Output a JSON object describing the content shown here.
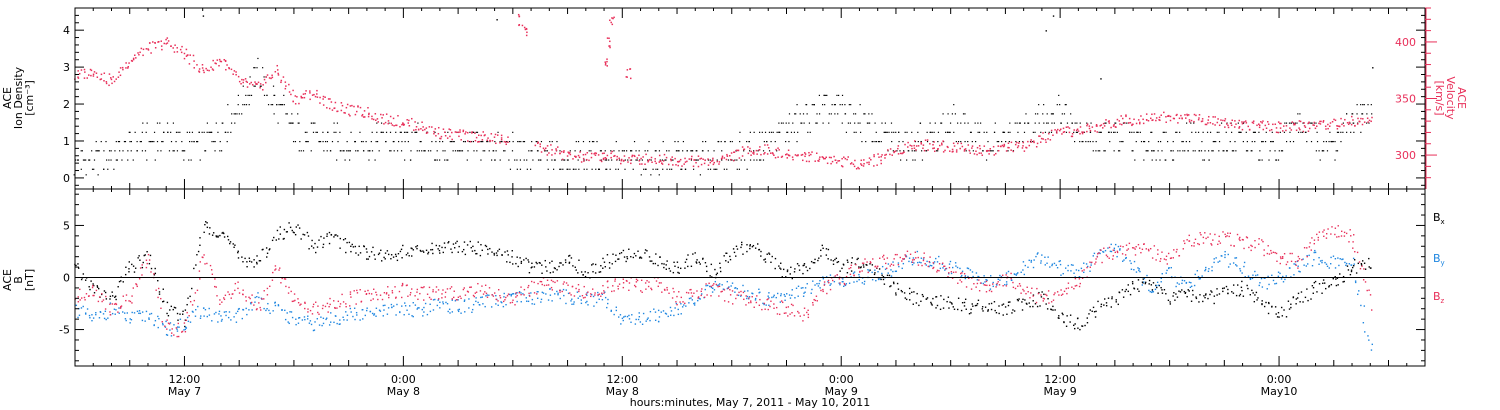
{
  "figure": {
    "xlabel": "hours:minutes, May  7, 2011 - May 10, 2011",
    "x_ticks": [
      {
        "hour": 12,
        "time_label": "12:00",
        "date_label": "May 7"
      },
      {
        "hour": 24,
        "time_label": "0:00",
        "date_label": "May 8"
      },
      {
        "hour": 36,
        "time_label": "12:00",
        "date_label": "May 8"
      },
      {
        "hour": 48,
        "time_label": "0:00",
        "date_label": "May 9"
      },
      {
        "hour": 60,
        "time_label": "12:00",
        "date_label": "May 9"
      },
      {
        "hour": 72,
        "time_label": "0:00",
        "date_label": "May10"
      }
    ],
    "xlim_hours": [
      6,
      80
    ]
  },
  "colors": {
    "black": "#000000",
    "red": "#e8305a",
    "blue": "#1e86e0"
  },
  "chart_data": [
    {
      "type": "scatter",
      "panel": "top",
      "ylabel_lines": [
        "ACE",
        "Ion Density",
        "[cm⁻³]"
      ],
      "ylabel_right_lines": [
        "ACE",
        "Velocity",
        "[km/s]"
      ],
      "ylim": [
        -0.3,
        4.6
      ],
      "ylim_right": [
        270,
        430
      ],
      "yticks": [
        "0",
        "1",
        "2",
        "3",
        "4"
      ],
      "yticks_right": [
        "300",
        "350",
        "400"
      ],
      "series": [
        {
          "name": "density",
          "axis": "left",
          "color": "black",
          "x": [
            6,
            7,
            8,
            9,
            10,
            11,
            12,
            13,
            14,
            15,
            16,
            17,
            18,
            19,
            20,
            21,
            22,
            23,
            24,
            25,
            26,
            27,
            28,
            29,
            30,
            31,
            32,
            33,
            34,
            35,
            36,
            37,
            38,
            39,
            40,
            41,
            42,
            43,
            44,
            45,
            46,
            47,
            48,
            49,
            50,
            51,
            52,
            53,
            54,
            55,
            56,
            57,
            58,
            59,
            60,
            61,
            62,
            63,
            64,
            65,
            66,
            67,
            68,
            69,
            70,
            71,
            72,
            73,
            74,
            75,
            76,
            77
          ],
          "y": [
            0.4,
            0.5,
            0.6,
            0.9,
            1.0,
            1.2,
            0.8,
            1.0,
            1.3,
            2.0,
            2.8,
            2.0,
            1.3,
            1.1,
            1.0,
            0.9,
            1.0,
            1.1,
            0.9,
            1.0,
            0.8,
            0.9,
            0.8,
            0.8,
            0.7,
            0.6,
            0.6,
            0.5,
            0.6,
            0.6,
            0.5,
            0.5,
            0.5,
            0.6,
            0.5,
            0.6,
            0.7,
            0.8,
            1.0,
            1.3,
            1.6,
            1.9,
            1.8,
            1.5,
            1.2,
            1.0,
            1.0,
            1.1,
            1.5,
            1.2,
            1.0,
            1.0,
            1.3,
            1.6,
            1.8,
            1.4,
            1.0,
            1.2,
            1.0,
            0.9,
            1.0,
            1.1,
            0.8,
            1.0,
            1.2,
            0.8,
            1.0,
            1.5,
            1.1,
            0.9,
            1.6,
            1.7
          ],
          "spikes": [
            [
              13.0,
              4.4
            ],
            [
              29.1,
              4.3
            ],
            [
              52.3,
              1.5
            ],
            [
              59.2,
              4.0
            ],
            [
              59.6,
              4.4
            ],
            [
              62.2,
              2.7
            ],
            [
              77.1,
              3.0
            ]
          ]
        },
        {
          "name": "velocity",
          "axis": "right",
          "color": "red",
          "x": [
            6,
            7,
            8,
            9,
            10,
            11,
            12,
            13,
            14,
            15,
            16,
            17,
            18,
            19,
            20,
            21,
            22,
            23,
            24,
            25,
            26,
            27,
            28,
            29,
            30,
            31,
            32,
            33,
            34,
            35,
            36,
            37,
            38,
            39,
            40,
            41,
            42,
            43,
            44,
            45,
            46,
            47,
            48,
            49,
            50,
            51,
            52,
            53,
            54,
            55,
            56,
            57,
            58,
            59,
            60,
            61,
            62,
            63,
            64,
            65,
            66,
            67,
            68,
            69,
            70,
            71,
            72,
            73,
            74,
            75,
            76,
            77
          ],
          "y": [
            370,
            375,
            365,
            385,
            395,
            400,
            390,
            375,
            385,
            365,
            360,
            375,
            350,
            355,
            345,
            340,
            338,
            332,
            330,
            325,
            320,
            318,
            317,
            315,
            312,
            308,
            305,
            300,
            298,
            300,
            297,
            297,
            297,
            296,
            295,
            295,
            300,
            305,
            305,
            300,
            300,
            298,
            295,
            293,
            297,
            305,
            310,
            309,
            308,
            306,
            305,
            307,
            308,
            315,
            320,
            322,
            325,
            330,
            332,
            335,
            333,
            334,
            332,
            330,
            328,
            326,
            325,
            326,
            327,
            328,
            330,
            332
          ],
          "gap_points": [
            [
              30.4,
              420
            ],
            [
              30.6,
              410
            ],
            [
              35.4,
              418
            ],
            [
              35.2,
              400
            ],
            [
              35.0,
              382
            ],
            [
              36.3,
              372
            ]
          ]
        }
      ]
    },
    {
      "type": "scatter",
      "panel": "bottom",
      "ylabel_lines": [
        "ACE",
        "B",
        "[nT]"
      ],
      "ylim": [
        -8.5,
        8.5
      ],
      "yticks": [
        "-5",
        "0",
        "5"
      ],
      "zero_line": 0,
      "legend_position": "right",
      "series": [
        {
          "name": "Bx",
          "label_main": "B",
          "label_sub": "x",
          "color": "black",
          "x": [
            6,
            7,
            8,
            9,
            10,
            11,
            12,
            13,
            14,
            15,
            16,
            17,
            18,
            19,
            20,
            21,
            22,
            23,
            24,
            25,
            26,
            27,
            28,
            29,
            30,
            31,
            32,
            33,
            34,
            35,
            36,
            37,
            38,
            39,
            40,
            41,
            42,
            43,
            44,
            45,
            46,
            47,
            48,
            49,
            50,
            51,
            52,
            53,
            54,
            55,
            56,
            57,
            58,
            59,
            60,
            61,
            62,
            63,
            64,
            65,
            66,
            67,
            68,
            69,
            70,
            71,
            72,
            73,
            74,
            75,
            76,
            77
          ],
          "y": [
            1.0,
            -1.0,
            -2.0,
            1.0,
            2.0,
            -3.0,
            -4.0,
            5.0,
            4.5,
            2.0,
            1.5,
            4.0,
            5.0,
            3.0,
            4.0,
            3.0,
            2.5,
            2.0,
            2.5,
            2.5,
            3.0,
            3.0,
            2.8,
            2.5,
            2.0,
            1.0,
            1.0,
            2.0,
            0.5,
            1.5,
            2.0,
            2.5,
            1.5,
            1.0,
            2.0,
            0.5,
            2.5,
            3.0,
            2.0,
            0.5,
            1.0,
            2.5,
            1.0,
            1.5,
            0.5,
            -1.0,
            -2.0,
            -2.5,
            -2.2,
            -2.8,
            -2.8,
            -3.0,
            -2.5,
            -2.0,
            -4.0,
            -4.5,
            -3.0,
            -2.0,
            -1.0,
            -0.5,
            -2.0,
            -1.5,
            -2.0,
            -1.5,
            -1.0,
            -2.5,
            -3.5,
            -2.0,
            -1.0,
            -0.5,
            1.0,
            1.5
          ]
        },
        {
          "name": "By",
          "label_main": "B",
          "label_sub": "y",
          "color": "blue",
          "x": [
            6,
            7,
            8,
            9,
            10,
            11,
            12,
            13,
            14,
            15,
            16,
            17,
            18,
            19,
            20,
            21,
            22,
            23,
            24,
            25,
            26,
            27,
            28,
            29,
            30,
            31,
            32,
            33,
            34,
            35,
            36,
            37,
            38,
            39,
            40,
            41,
            42,
            43,
            44,
            45,
            46,
            47,
            48,
            49,
            50,
            51,
            52,
            53,
            54,
            55,
            56,
            57,
            58,
            59,
            60,
            61,
            62,
            63,
            64,
            65,
            66,
            67,
            68,
            69,
            70,
            71,
            72,
            73,
            74,
            75,
            76,
            77
          ],
          "y": [
            -3.0,
            -4.0,
            -3.0,
            -4.0,
            -3.5,
            -5.0,
            -4.5,
            -3.0,
            -4.0,
            -3.5,
            -2.0,
            -3.0,
            -4.0,
            -4.5,
            -4.0,
            -3.5,
            -3.5,
            -3.2,
            -3.0,
            -3.0,
            -2.5,
            -2.8,
            -2.5,
            -2.2,
            -2.0,
            -2.0,
            -1.5,
            -1.8,
            -2.0,
            -2.0,
            -4.0,
            -3.8,
            -3.5,
            -2.8,
            -2.5,
            -0.5,
            -1.0,
            -1.5,
            -2.0,
            -1.5,
            -1.0,
            -0.5,
            -0.2,
            0.0,
            0.5,
            1.0,
            2.0,
            1.5,
            1.0,
            0.5,
            -0.5,
            0.0,
            1.0,
            2.0,
            1.0,
            0.5,
            2.0,
            3.0,
            1.0,
            -1.0,
            0.5,
            -1.0,
            1.0,
            2.0,
            1.0,
            -0.5,
            0.0,
            1.0,
            2.0,
            1.5,
            1.5,
            -7.0
          ]
        },
        {
          "name": "Bz",
          "label_main": "B",
          "label_sub": "z",
          "color": "red",
          "x": [
            6,
            7,
            8,
            9,
            10,
            11,
            12,
            13,
            14,
            15,
            16,
            17,
            18,
            19,
            20,
            21,
            22,
            23,
            24,
            25,
            26,
            27,
            28,
            29,
            30,
            31,
            32,
            33,
            34,
            35,
            36,
            37,
            38,
            39,
            40,
            41,
            42,
            43,
            44,
            45,
            46,
            47,
            48,
            49,
            50,
            51,
            52,
            53,
            54,
            55,
            56,
            57,
            58,
            59,
            60,
            61,
            62,
            63,
            64,
            65,
            66,
            67,
            68,
            69,
            70,
            71,
            72,
            73,
            74,
            75,
            76,
            77
          ],
          "y": [
            -2.0,
            -1.0,
            -3.0,
            -2.0,
            2.0,
            -5.0,
            -5.0,
            2.0,
            -2.0,
            -1.0,
            -3.0,
            1.0,
            -2.0,
            -3.0,
            -2.5,
            -2.0,
            -1.5,
            -1.5,
            -1.2,
            -1.5,
            -1.5,
            -1.5,
            -1.0,
            -1.5,
            -2.0,
            -1.0,
            -0.5,
            -1.0,
            -1.5,
            -1.0,
            -0.5,
            -0.8,
            -0.5,
            -2.0,
            -1.5,
            -1.0,
            -1.8,
            -2.0,
            -2.5,
            -3.0,
            -3.5,
            -1.0,
            0.0,
            1.0,
            1.5,
            1.8,
            2.0,
            1.5,
            0.5,
            -0.5,
            -1.0,
            0.0,
            -1.0,
            -2.0,
            -1.5,
            -0.5,
            2.0,
            2.5,
            3.0,
            2.5,
            2.0,
            3.5,
            3.8,
            4.0,
            3.5,
            3.0,
            2.0,
            1.5,
            4.0,
            4.5,
            4.0,
            -2.5
          ]
        }
      ]
    }
  ]
}
